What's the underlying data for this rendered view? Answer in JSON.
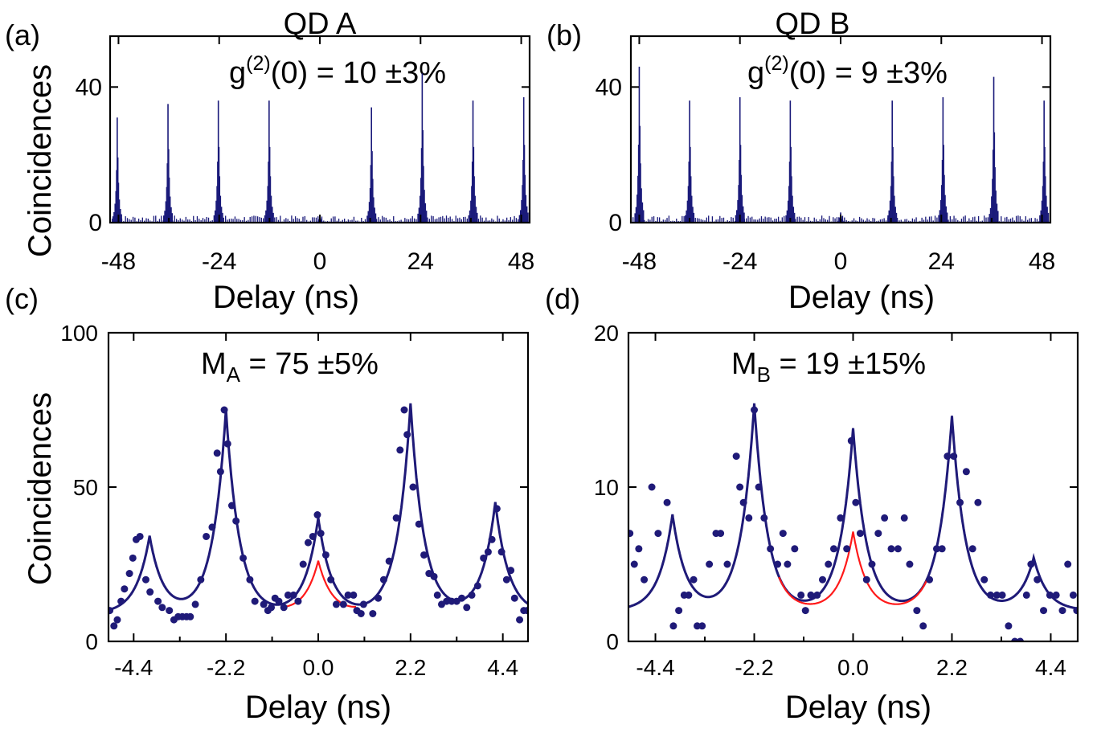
{
  "colors": {
    "data": "#1f1a78",
    "reference": "#ff1a1a",
    "axes": "#000000"
  },
  "shared_labels": {
    "ylabel_top": "Coincidences",
    "ylabel_bottom": "Coincidences"
  },
  "chart_data": [
    {
      "panel": "(a)",
      "type": "bar",
      "title": "QD A",
      "annotation": {
        "base": "g",
        "sup": "(2)",
        "rest": "(0) = 10 ±3%"
      },
      "xlabel": "Delay (ns)",
      "ylabel": "Coincidences",
      "xlim": [
        -50,
        50
      ],
      "ylim": [
        0,
        55
      ],
      "xticks": [
        "-48",
        "-24",
        "0",
        "24",
        "48"
      ],
      "xtick_values": [
        -48,
        -24,
        0,
        24,
        48
      ],
      "yticks": [
        "0",
        "40"
      ],
      "ytick_values": [
        0,
        40
      ],
      "peaks": [
        {
          "x": -48.3,
          "height": 31
        },
        {
          "x": -36.2,
          "height": 35
        },
        {
          "x": -24.2,
          "height": 36
        },
        {
          "x": -12.1,
          "height": 36
        },
        {
          "x": 0,
          "height": 2
        },
        {
          "x": 12.3,
          "height": 34
        },
        {
          "x": 24.4,
          "height": 44
        },
        {
          "x": 36.5,
          "height": 36
        },
        {
          "x": 48.6,
          "height": 37
        }
      ],
      "background": 1
    },
    {
      "panel": "(b)",
      "type": "bar",
      "title": "QD B",
      "annotation": {
        "base": "g",
        "sup": "(2)",
        "rest": "(0) = 9 ±3%"
      },
      "xlabel": "Delay (ns)",
      "ylabel": "",
      "xlim": [
        -50,
        50
      ],
      "ylim": [
        0,
        55
      ],
      "xticks": [
        "-48",
        "-24",
        "0",
        "24",
        "48"
      ],
      "xtick_values": [
        -48,
        -24,
        0,
        24,
        48
      ],
      "yticks": [
        "0",
        "40"
      ],
      "ytick_values": [
        0,
        40
      ],
      "peaks": [
        {
          "x": -48.0,
          "height": 46
        },
        {
          "x": -36.0,
          "height": 36
        },
        {
          "x": -24.0,
          "height": 37
        },
        {
          "x": -12.0,
          "height": 36
        },
        {
          "x": 0,
          "height": 3
        },
        {
          "x": 12.3,
          "height": 36
        },
        {
          "x": 24.4,
          "height": 37
        },
        {
          "x": 36.5,
          "height": 43
        },
        {
          "x": 48.5,
          "height": 36
        }
      ],
      "background": 1
    },
    {
      "panel": "(c)",
      "type": "scatter",
      "title": "",
      "annotation": {
        "base": "M",
        "sub": "A",
        "rest": " = 75 ±5%"
      },
      "xlabel": "Delay (ns)",
      "ylabel": "Coincidences",
      "xlim": [
        -5.0,
        5.0
      ],
      "ylim": [
        0,
        100
      ],
      "xticks": [
        "-4.4",
        "-2.2",
        "0.0",
        "2.2",
        "4.4"
      ],
      "xtick_values": [
        -4.4,
        -2.2,
        0,
        2.2,
        4.4
      ],
      "yticks": [
        "0",
        "50",
        "100"
      ],
      "ytick_values": [
        0,
        50,
        100
      ],
      "points": [
        [
          -4.97,
          10
        ],
        [
          -4.87,
          5
        ],
        [
          -4.79,
          7
        ],
        [
          -4.7,
          13
        ],
        [
          -4.62,
          17
        ],
        [
          -4.5,
          22
        ],
        [
          -4.42,
          27
        ],
        [
          -4.34,
          33
        ],
        [
          -4.25,
          34
        ],
        [
          -4.11,
          20
        ],
        [
          -4.01,
          16
        ],
        [
          -3.82,
          13
        ],
        [
          -3.72,
          11
        ],
        [
          -3.55,
          10
        ],
        [
          -3.44,
          7
        ],
        [
          -3.34,
          8
        ],
        [
          -3.24,
          8
        ],
        [
          -3.14,
          8
        ],
        [
          -3.05,
          8
        ],
        [
          -2.93,
          12
        ],
        [
          -2.8,
          20
        ],
        [
          -2.67,
          34
        ],
        [
          -2.53,
          37
        ],
        [
          -2.41,
          61
        ],
        [
          -2.33,
          55
        ],
        [
          -2.24,
          75
        ],
        [
          -2.16,
          64
        ],
        [
          -2.06,
          44
        ],
        [
          -1.96,
          39
        ],
        [
          -1.79,
          27
        ],
        [
          -1.63,
          20
        ],
        [
          -1.51,
          13
        ],
        [
          -1.3,
          12
        ],
        [
          -1.2,
          10
        ],
        [
          -1.12,
          11
        ],
        [
          -1.03,
          14
        ],
        [
          -0.94,
          13
        ],
        [
          -0.82,
          11
        ],
        [
          -0.72,
          15
        ],
        [
          -0.59,
          15
        ],
        [
          -0.48,
          13
        ],
        [
          -0.36,
          25
        ],
        [
          -0.24,
          32
        ],
        [
          -0.13,
          34
        ],
        [
          -0.02,
          41
        ],
        [
          0.06,
          35
        ],
        [
          0.18,
          28
        ],
        [
          0.3,
          20
        ],
        [
          0.43,
          12
        ],
        [
          0.6,
          12
        ],
        [
          0.71,
          15
        ],
        [
          0.84,
          15
        ],
        [
          0.92,
          10
        ],
        [
          1.02,
          9
        ],
        [
          1.08,
          12
        ],
        [
          1.3,
          9
        ],
        [
          1.43,
          14
        ],
        [
          1.56,
          20
        ],
        [
          1.69,
          26
        ],
        [
          1.86,
          40
        ],
        [
          1.95,
          62
        ],
        [
          2.05,
          75
        ],
        [
          2.12,
          67
        ],
        [
          2.26,
          50
        ],
        [
          2.4,
          38
        ],
        [
          2.52,
          28
        ],
        [
          2.64,
          22
        ],
        [
          2.76,
          21
        ],
        [
          2.84,
          15
        ],
        [
          2.94,
          12
        ],
        [
          3.06,
          13
        ],
        [
          3.18,
          13
        ],
        [
          3.3,
          13
        ],
        [
          3.42,
          14
        ],
        [
          3.54,
          11
        ],
        [
          3.66,
          15
        ],
        [
          3.8,
          18
        ],
        [
          3.94,
          27
        ],
        [
          4.05,
          29
        ],
        [
          4.14,
          33
        ],
        [
          4.26,
          43
        ],
        [
          4.37,
          29
        ],
        [
          4.49,
          20
        ],
        [
          4.59,
          23
        ],
        [
          4.68,
          14
        ],
        [
          4.8,
          7
        ],
        [
          4.9,
          10
        ],
        [
          4.98,
          10
        ]
      ],
      "fit": {
        "background": 9,
        "width": 0.32,
        "peaks": [
          [
            -4.02,
            25
          ],
          [
            -2.2,
            66
          ],
          [
            0.0,
            31
          ],
          [
            2.2,
            68
          ],
          [
            4.22,
            36
          ]
        ]
      },
      "reference": {
        "background": 9,
        "width": 0.32,
        "peak_height": 17,
        "x_range": [
          -0.9,
          0.9
        ]
      }
    },
    {
      "panel": "(d)",
      "type": "scatter",
      "title": "",
      "annotation": {
        "base": "M",
        "sub": "B",
        "rest": " = 19 ±15%"
      },
      "xlabel": "Delay (ns)",
      "ylabel": "",
      "xlim": [
        -5.0,
        5.0
      ],
      "ylim": [
        0,
        20
      ],
      "xticks": [
        "-4.4",
        "-2.2",
        "0.0",
        "2.2",
        "4.4"
      ],
      "xtick_values": [
        -4.4,
        -2.2,
        0,
        2.2,
        4.4
      ],
      "yticks": [
        "0",
        "10",
        "20"
      ],
      "ytick_values": [
        0,
        10,
        20
      ],
      "points": [
        [
          -4.97,
          7
        ],
        [
          -4.87,
          5
        ],
        [
          -4.77,
          6
        ],
        [
          -4.65,
          4
        ],
        [
          -4.48,
          10
        ],
        [
          -4.34,
          7
        ],
        [
          -4.14,
          9
        ],
        [
          -4.0,
          1
        ],
        [
          -3.88,
          2
        ],
        [
          -3.76,
          3
        ],
        [
          -3.66,
          3
        ],
        [
          -3.55,
          4
        ],
        [
          -3.47,
          1
        ],
        [
          -3.36,
          1
        ],
        [
          -3.2,
          5
        ],
        [
          -3.05,
          7
        ],
        [
          -2.95,
          7
        ],
        [
          -2.8,
          5
        ],
        [
          -2.6,
          12
        ],
        [
          -2.52,
          10
        ],
        [
          -2.44,
          9
        ],
        [
          -2.32,
          8
        ],
        [
          -2.2,
          15
        ],
        [
          -2.1,
          10
        ],
        [
          -1.98,
          8
        ],
        [
          -1.84,
          6
        ],
        [
          -1.68,
          5
        ],
        [
          -1.56,
          7
        ],
        [
          -1.46,
          5
        ],
        [
          -1.3,
          6
        ],
        [
          -1.16,
          3
        ],
        [
          -1.06,
          2
        ],
        [
          -0.94,
          3
        ],
        [
          -0.8,
          3
        ],
        [
          -0.68,
          4
        ],
        [
          -0.55,
          5
        ],
        [
          -0.43,
          6
        ],
        [
          -0.28,
          8
        ],
        [
          -0.14,
          6
        ],
        [
          -0.04,
          13
        ],
        [
          0.06,
          9
        ],
        [
          0.16,
          7
        ],
        [
          0.3,
          4
        ],
        [
          0.42,
          5
        ],
        [
          0.56,
          7
        ],
        [
          0.7,
          8
        ],
        [
          0.85,
          6
        ],
        [
          1.0,
          6
        ],
        [
          1.14,
          8
        ],
        [
          1.26,
          5
        ],
        [
          1.42,
          2
        ],
        [
          1.56,
          1
        ],
        [
          1.7,
          4
        ],
        [
          1.86,
          6
        ],
        [
          1.98,
          6
        ],
        [
          2.1,
          12
        ],
        [
          2.24,
          12
        ],
        [
          2.38,
          9
        ],
        [
          2.52,
          11
        ],
        [
          2.66,
          6
        ],
        [
          2.78,
          9
        ],
        [
          2.92,
          4
        ],
        [
          3.06,
          3
        ],
        [
          3.2,
          3
        ],
        [
          3.32,
          3
        ],
        [
          3.46,
          1
        ],
        [
          3.6,
          0
        ],
        [
          3.72,
          0
        ],
        [
          3.86,
          3
        ],
        [
          3.96,
          5
        ],
        [
          4.1,
          4
        ],
        [
          4.24,
          2
        ],
        [
          4.38,
          3
        ],
        [
          4.52,
          3
        ],
        [
          4.66,
          2
        ],
        [
          4.78,
          5
        ],
        [
          4.9,
          3
        ],
        [
          4.98,
          2
        ]
      ],
      "fit": {
        "background": 2,
        "width": 0.3,
        "peaks": [
          [
            -4.02,
            6.2
          ],
          [
            -2.2,
            13.4
          ],
          [
            0.0,
            11.8
          ],
          [
            2.2,
            12.6
          ],
          [
            4.02,
            3.4
          ]
        ]
      },
      "reference": {
        "background": 2,
        "width": 0.3,
        "peak_height": 5.1,
        "x_range": [
          -1.65,
          1.65
        ]
      }
    }
  ]
}
